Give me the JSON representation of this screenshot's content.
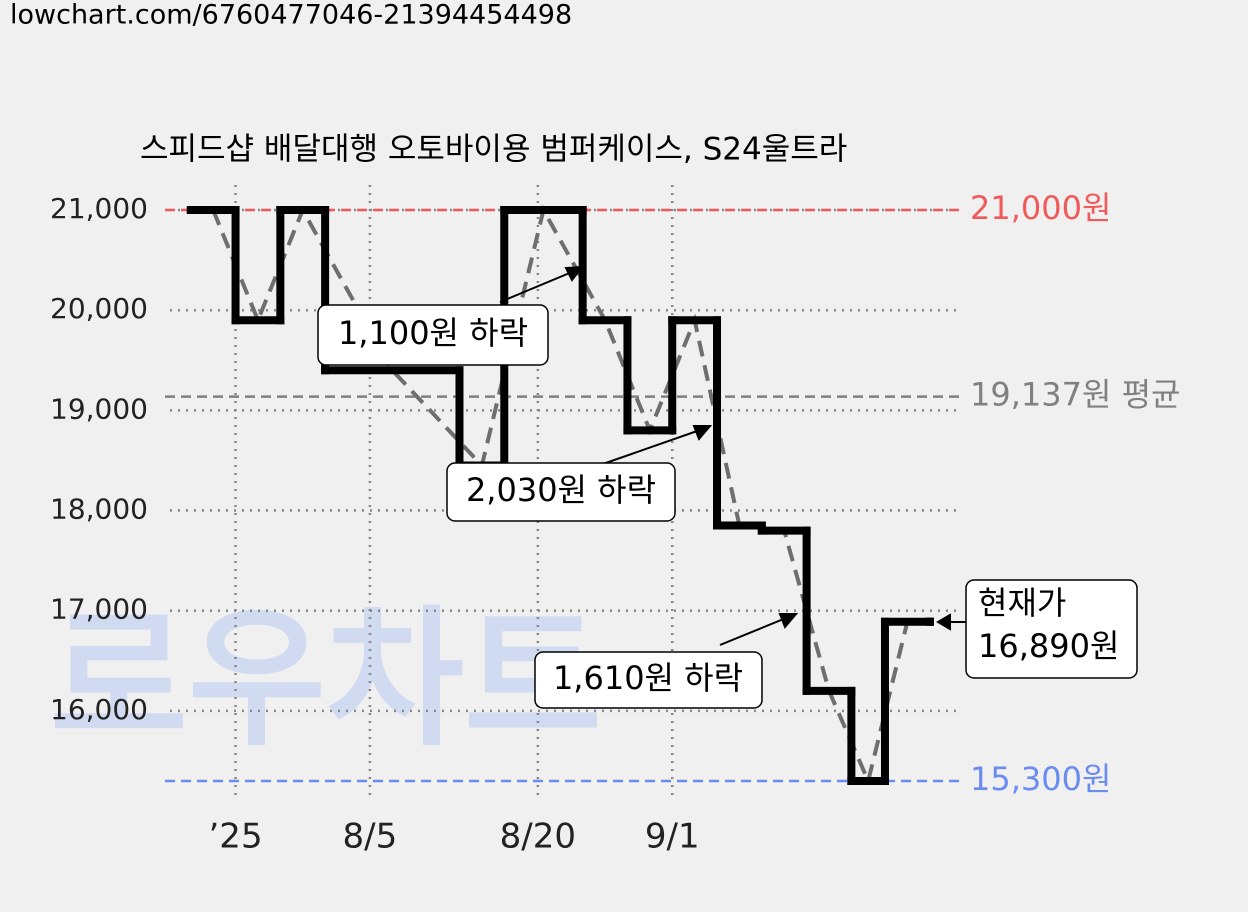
{
  "header": "lowchart.com/6760477046-21394454498",
  "watermark": "로우차트",
  "chart_data": {
    "type": "step",
    "title": "스피드샵 배달대행 오토바이용 범퍼케이스, S24울트라",
    "x": [
      -12,
      -8,
      -4,
      0,
      12,
      16,
      23,
      27,
      31,
      35,
      39,
      43,
      47,
      50,
      54
    ],
    "series": [
      {
        "color": "#000000",
        "values": [
          21000,
          19900,
          21000,
          19400,
          18450,
          21000,
          19900,
          18800,
          19900,
          17850,
          17800,
          16200,
          15300,
          16890,
          16890
        ]
      }
    ],
    "trend_color": "#6e6e6e",
    "xlim": [
      -14.3,
      56.7
    ],
    "xticks": [
      {
        "value": -8,
        "label": "’25"
      },
      {
        "value": 4,
        "label": "8/5"
      },
      {
        "value": 19,
        "label": "8/20"
      },
      {
        "value": 31,
        "label": "9/1"
      }
    ],
    "ylim": [
      15100,
      21300
    ],
    "yticks": [
      {
        "value": 16000,
        "label": "16,000"
      },
      {
        "value": 17000,
        "label": "17,000"
      },
      {
        "value": 18000,
        "label": "18,000"
      },
      {
        "value": 19000,
        "label": "19,000"
      },
      {
        "value": 20000,
        "label": "20,000"
      },
      {
        "value": 21000,
        "label": "21,000"
      }
    ],
    "grid": true,
    "reference_lines": [
      {
        "value": 21000,
        "label": "21,000원",
        "color": "#f05a5a"
      },
      {
        "value": 19137,
        "label": "19,137원 평균",
        "color": "#808080"
      },
      {
        "value": 15300,
        "label": "15,300원",
        "color": "#6a8cf0"
      }
    ],
    "annotations": [
      "1,100원 하락",
      "2,030원 하락",
      "1,610원 하락"
    ],
    "current_price": {
      "label": "현재가",
      "value": "16,890원"
    }
  }
}
